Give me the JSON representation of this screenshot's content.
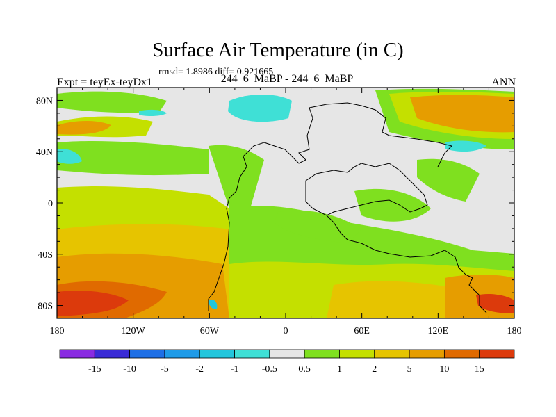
{
  "plot": {
    "title": "Surface Air Temperature (in C)",
    "subtitle": "rmsd= 1.8986 diff= 0.921665",
    "left_label": "Expt = teyEx-teyDx1",
    "center_label": "244_6_MaBP - 244_6_MaBP",
    "right_label": "ANN"
  },
  "axes": {
    "lon_ticks": [
      "180",
      "120W",
      "60W",
      "0",
      "60E",
      "120E",
      "180"
    ],
    "lat_ticks": [
      "80N",
      "40N",
      "0",
      "40S",
      "80S"
    ]
  },
  "colorbar": {
    "colors": [
      "#8a2be2",
      "#3a2bd6",
      "#1e6fe6",
      "#1f9be8",
      "#22c6dc",
      "#3fe0d6",
      "#e6e6e6",
      "#7fe01f",
      "#c4e000",
      "#e6c400",
      "#e69d00",
      "#e06a00",
      "#dc3a0c"
    ],
    "labels": [
      "-15",
      "-10",
      "-5",
      "-2",
      "-1",
      "-0.5",
      "0.5",
      "1",
      "2",
      "5",
      "10",
      "15"
    ]
  },
  "map_colors": {
    "neutral": "#e6e6e6",
    "green": "#7fe01f",
    "yellow_green": "#c4e000",
    "yellow": "#e6c400",
    "orange": "#e69d00",
    "dark_orange": "#e06a00",
    "red": "#dc3a0c",
    "cyan": "#22c6dc",
    "light_cyan": "#3fe0d6"
  }
}
